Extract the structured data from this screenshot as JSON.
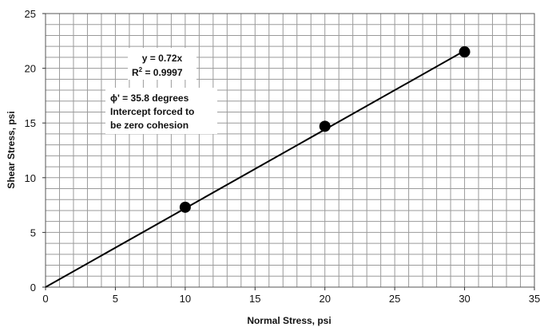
{
  "chart_data": {
    "type": "scatter",
    "xlabel": "Normal Stress, psi",
    "ylabel": "Shear Stress, psi",
    "xlim": [
      0,
      35
    ],
    "ylim": [
      0,
      25
    ],
    "xticks": [
      0,
      5,
      10,
      15,
      20,
      25,
      30,
      35
    ],
    "yticks": [
      0,
      5,
      10,
      15,
      20,
      25
    ],
    "minor_grid_step_x": 1,
    "minor_grid_step_y": 1,
    "grid": true,
    "series": [
      {
        "x": [
          10,
          20,
          30
        ],
        "y": [
          7.3,
          14.7,
          21.5
        ],
        "color": "#000000",
        "marker": "circle"
      }
    ],
    "trendline": {
      "slope": 0.72,
      "intercept": 0,
      "x_range": [
        0,
        30
      ],
      "color": "#000000"
    },
    "annotations": {
      "equation": "y = 0.72x",
      "r2_prefix": "R",
      "r2_exponent": "2",
      "r2_value": " = 0.9997",
      "phi_line": "ϕ' = 35.8 degrees",
      "note_line1": "Intercept forced to",
      "note_line2": "be zero cohesion"
    }
  }
}
